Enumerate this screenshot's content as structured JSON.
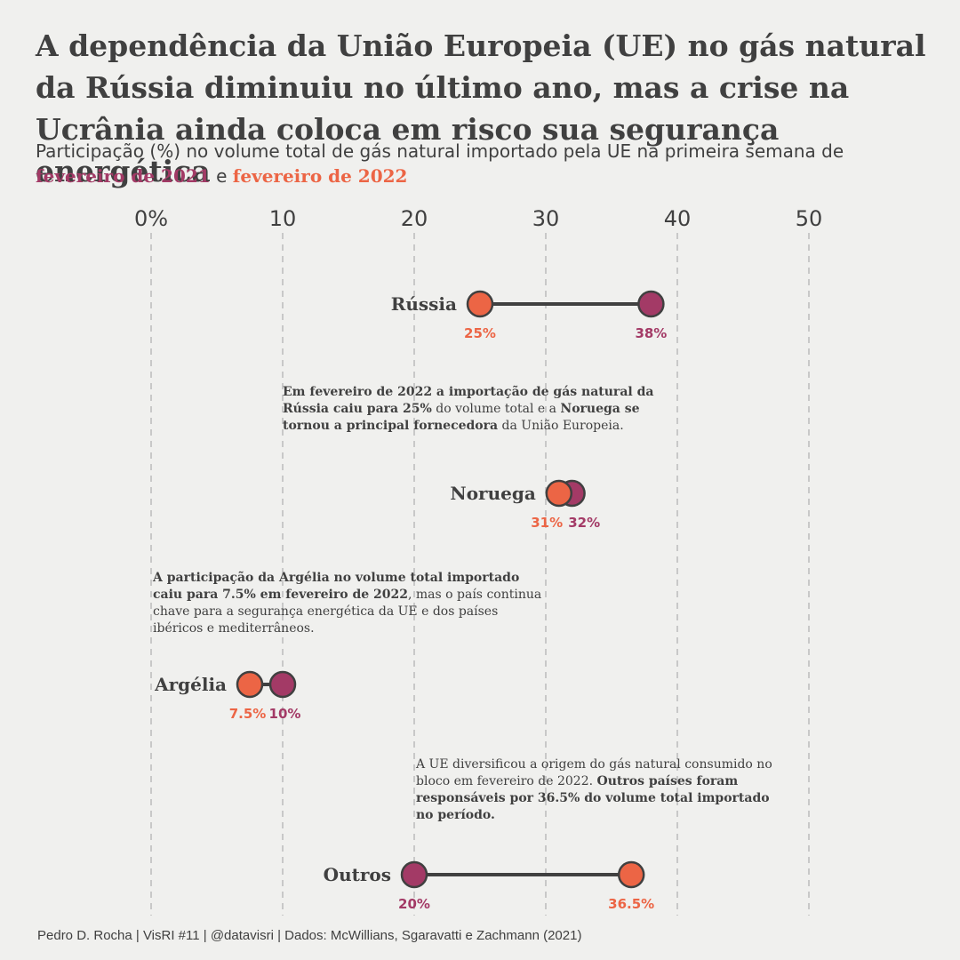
{
  "title": "A dependência da União Europeia (UE) no gás natural da Rússia diminuiu no último ano, mas a crise na Ucrânia ainda coloca em risco sua segurança energética",
  "subtitle": {
    "text": "Participação (%) no volume total de gás natural importado pela UE na primeira semana de",
    "year1": "fevereiro de 2021",
    "connector": "e",
    "year2": "fevereiro de 2022"
  },
  "colors": {
    "y2021": "#a33a66",
    "y2022": "#ec6545",
    "line": "#404040",
    "grid": "#c8c8c8",
    "background": "#f0f0ee"
  },
  "chart_data": {
    "type": "dumbbell",
    "xlim": [
      0,
      50
    ],
    "ticks": [
      {
        "value": 0,
        "label": "0%"
      },
      {
        "value": 10,
        "label": "10"
      },
      {
        "value": 20,
        "label": "20"
      },
      {
        "value": 30,
        "label": "30"
      },
      {
        "value": 40,
        "label": "40"
      },
      {
        "value": 50,
        "label": "50"
      }
    ],
    "grid": true,
    "categories": [
      "Rússia",
      "Noruega",
      "Argélia",
      "Outros"
    ],
    "series": [
      {
        "name": "fevereiro de 2021",
        "values": [
          38,
          32,
          10,
          20
        ],
        "labels": [
          "38%",
          "32%",
          "10%",
          "20%"
        ]
      },
      {
        "name": "fevereiro de 2022",
        "values": [
          25,
          31,
          7.5,
          36.5
        ],
        "labels": [
          "25%",
          "31%",
          "7.5%",
          "36.5%"
        ]
      }
    ]
  },
  "annotations": [
    {
      "b1": "Em fevereiro de 2022 a importação de gás natural da Rússia caiu para 25%",
      "t1": " do volume total e a ",
      "b2": "Noruega se tornou a principal fornecedora",
      "t2": " da União Europeia."
    },
    {
      "b1": "A participação da Argélia no volume total importado caiu para 7.5% em fevereiro de 2022",
      "t1": ", mas o país continua chave para a segurança energética da UE e dos países ibéricos e mediterrâneos.",
      "b2": "",
      "t2": ""
    },
    {
      "b1": "",
      "t1": "A UE diversificou a origem do gás natural consumido no bloco em fevereiro de 2022. ",
      "b2": "Outros países foram responsáveis por 36.5% do volume total importado no período.",
      "t2": ""
    }
  ],
  "footer": "Pedro D. Rocha | VisRI #11 | @datavisri | Dados:  McWillians, Sgaravatti e Zachmann (2021)"
}
